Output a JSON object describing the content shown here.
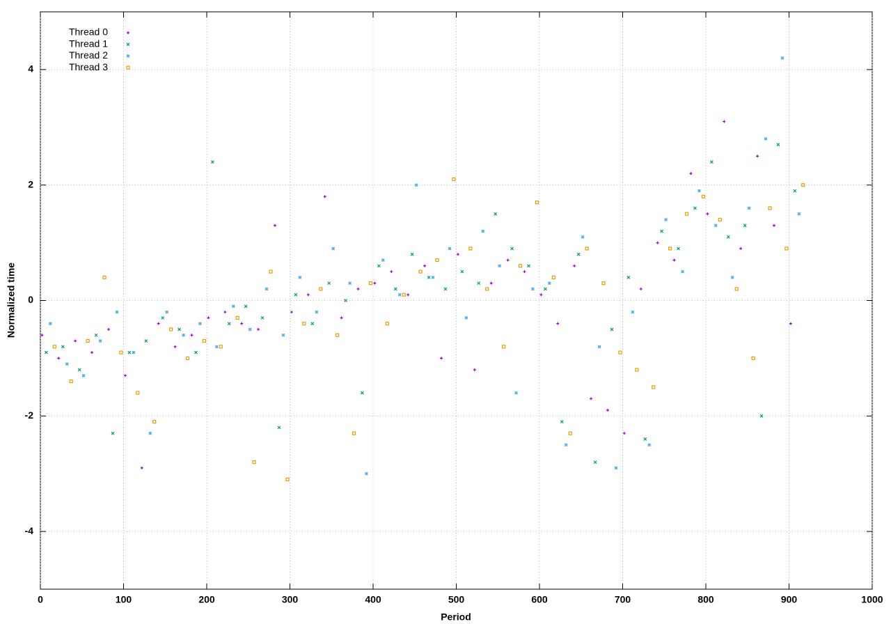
{
  "chart_data": {
    "type": "scatter",
    "xlabel": "Period",
    "ylabel": "Normalized time",
    "xlim": [
      0,
      1000
    ],
    "xticks": [
      0,
      100,
      200,
      300,
      400,
      500,
      600,
      700,
      800,
      900,
      1000
    ],
    "ylim": [
      -5,
      5
    ],
    "yticks": [
      -4,
      -2,
      0,
      2,
      4
    ],
    "grid": true,
    "legend": "top-left",
    "series": [
      {
        "name": "Thread 0",
        "color": "#9400d3",
        "marker": "plus",
        "x": [
          2,
          22,
          42,
          62,
          82,
          102,
          122,
          142,
          162,
          182,
          202,
          222,
          242,
          262,
          282,
          302,
          322,
          342,
          362,
          382,
          402,
          422,
          442,
          462,
          482,
          502,
          522,
          542,
          562,
          582,
          602,
          622,
          642,
          662,
          682,
          702,
          722,
          742,
          762,
          782,
          802,
          822,
          842,
          862,
          882,
          902
        ],
        "values": [
          -0.6,
          -1.0,
          -0.7,
          -0.9,
          -0.5,
          -1.3,
          -2.9,
          -0.4,
          -0.8,
          -0.6,
          -0.3,
          -0.2,
          -0.4,
          -0.5,
          1.3,
          -0.2,
          0.1,
          1.8,
          -0.3,
          0.2,
          0.3,
          0.5,
          0.1,
          0.6,
          -1.0,
          0.8,
          -1.2,
          0.3,
          0.7,
          0.5,
          0.1,
          -0.4,
          0.6,
          -1.7,
          -1.9,
          -2.3,
          0.2,
          1.0,
          0.7,
          2.2,
          1.5,
          3.1,
          0.9,
          2.5,
          1.3,
          -0.4
        ]
      },
      {
        "name": "Thread 1",
        "color": "#009e73",
        "marker": "cross",
        "x": [
          7,
          27,
          47,
          67,
          87,
          107,
          127,
          147,
          167,
          187,
          207,
          227,
          247,
          267,
          287,
          307,
          327,
          347,
          367,
          387,
          407,
          427,
          447,
          467,
          487,
          507,
          527,
          547,
          567,
          587,
          607,
          627,
          647,
          667,
          687,
          707,
          727,
          747,
          767,
          787,
          807,
          827,
          847,
          867,
          887,
          907
        ],
        "values": [
          -0.9,
          -0.8,
          -1.2,
          -0.6,
          -2.3,
          -0.9,
          -0.7,
          -0.3,
          -0.5,
          -0.9,
          2.4,
          -0.4,
          -0.1,
          -0.3,
          -2.2,
          0.1,
          -0.4,
          0.3,
          0.0,
          -1.6,
          0.6,
          0.2,
          0.8,
          0.4,
          0.2,
          0.5,
          0.3,
          1.5,
          0.9,
          0.6,
          0.2,
          -2.1,
          0.8,
          -2.8,
          -0.5,
          0.4,
          -2.4,
          1.2,
          0.9,
          1.6,
          2.4,
          1.1,
          1.3,
          -2.0,
          2.7,
          1.9
        ]
      },
      {
        "name": "Thread 2",
        "color": "#56b4e9",
        "marker": "star",
        "x": [
          12,
          32,
          52,
          72,
          92,
          112,
          132,
          152,
          172,
          192,
          212,
          232,
          252,
          272,
          292,
          312,
          332,
          352,
          372,
          392,
          412,
          432,
          452,
          472,
          492,
          512,
          532,
          552,
          572,
          592,
          612,
          632,
          652,
          672,
          692,
          712,
          732,
          752,
          772,
          792,
          812,
          832,
          852,
          872,
          892,
          912
        ],
        "values": [
          -0.4,
          -1.1,
          -1.3,
          -0.7,
          -0.2,
          -0.9,
          -2.3,
          -0.2,
          -0.6,
          -0.4,
          -0.8,
          -0.1,
          -0.5,
          0.2,
          -0.6,
          0.4,
          -0.2,
          0.9,
          0.3,
          -3.0,
          0.7,
          0.1,
          2.0,
          0.4,
          0.9,
          -0.3,
          1.2,
          0.6,
          -1.6,
          0.2,
          0.3,
          -2.5,
          1.1,
          -0.8,
          -2.9,
          -0.2,
          -2.5,
          1.4,
          0.5,
          1.9,
          1.3,
          0.4,
          1.6,
          2.8,
          4.2,
          1.5
        ]
      },
      {
        "name": "Thread 3",
        "color": "#e69f00",
        "marker": "square",
        "x": [
          17,
          37,
          57,
          77,
          97,
          117,
          137,
          157,
          177,
          197,
          217,
          237,
          257,
          277,
          297,
          317,
          337,
          357,
          377,
          397,
          417,
          437,
          457,
          477,
          497,
          517,
          537,
          557,
          577,
          597,
          617,
          637,
          657,
          677,
          697,
          717,
          737,
          757,
          777,
          797,
          817,
          837,
          857,
          877,
          897,
          917
        ],
        "values": [
          -0.8,
          -1.4,
          -0.7,
          0.4,
          -0.9,
          -1.6,
          -2.1,
          -0.5,
          -1.0,
          -0.7,
          -0.8,
          -0.3,
          -2.8,
          0.5,
          -3.1,
          -0.4,
          0.2,
          -0.6,
          -2.3,
          0.3,
          -0.4,
          0.1,
          0.5,
          0.7,
          2.1,
          0.9,
          0.2,
          -0.8,
          0.6,
          1.7,
          0.4,
          -2.3,
          0.9,
          0.3,
          -0.9,
          -1.2,
          -1.5,
          0.9,
          1.5,
          1.8,
          1.4,
          0.2,
          -1.0,
          1.6,
          0.9,
          2.0
        ]
      }
    ]
  }
}
